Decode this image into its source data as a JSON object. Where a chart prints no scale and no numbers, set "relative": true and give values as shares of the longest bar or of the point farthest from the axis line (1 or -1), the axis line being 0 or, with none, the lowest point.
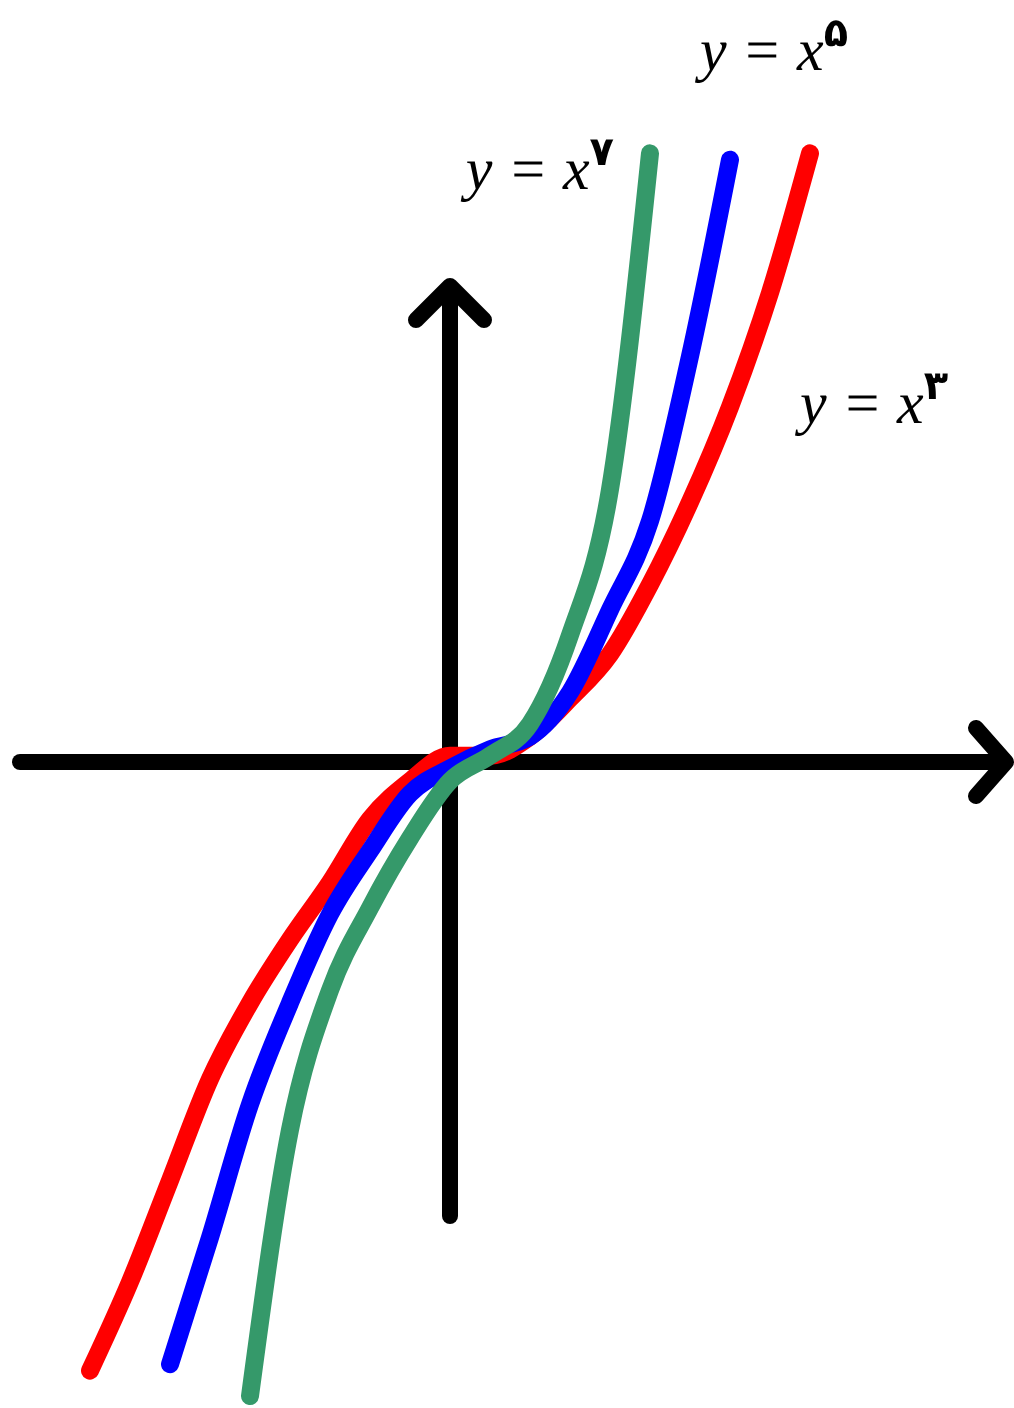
{
  "chart_data": {
    "type": "line",
    "relative": true,
    "categories": [
      null,
      null,
      null,
      null,
      null,
      null,
      null,
      null,
      null,
      null,
      null,
      null,
      null,
      null,
      null,
      null,
      null,
      null,
      null
    ],
    "series": [
      {
        "name": "y = x$^{۳}$",
        "color": "#ff0000",
        "values": [
          -0.96,
          -0.82,
          -0.66,
          -0.5,
          -0.38,
          -0.28,
          -0.19,
          -0.09,
          -0.03,
          0.01,
          0.01,
          0.04,
          0.1,
          0.17,
          0.28,
          0.41,
          0.56,
          0.74,
          0.96
        ]
      },
      {
        "name": "y = x$^{۵}$",
        "color": "#0000ff",
        "values": [
          null,
          null,
          -0.95,
          -0.75,
          -0.54,
          -0.38,
          -0.24,
          -0.14,
          -0.05,
          -0.01,
          0.02,
          0.04,
          0.11,
          0.24,
          0.38,
          0.64,
          0.95,
          null,
          null
        ]
      },
      {
        "name": "y = x$^{۷}$",
        "color": "#35996a",
        "values": [
          null,
          null,
          null,
          null,
          -1,
          -0.58,
          -0.36,
          -0.23,
          -0.12,
          -0.03,
          0.01,
          0.06,
          0.2,
          0.43,
          0.96,
          null,
          null,
          null,
          null
        ]
      }
    ]
  }
}
